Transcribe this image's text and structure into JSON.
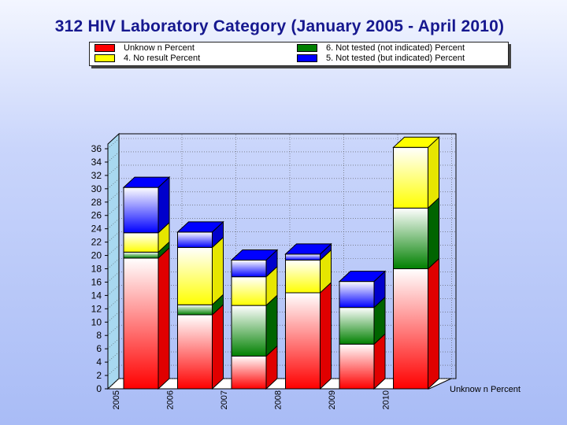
{
  "colors": {
    "unknown": "#ff0000",
    "not_tested_not_indicated": "#008000",
    "no_result": "#ffff00",
    "not_tested_indicated": "#0000ff",
    "title": "#16188f",
    "side_wall": "#a8d8f0"
  },
  "legend": {
    "unknown_label": "Unknow n Percent",
    "not_tested_not_indicated_label": "6. Not tested (not indicated) Percent",
    "no_result_label": "4. No result Percent",
    "not_tested_indicated_label": "5. Not tested (but indicated) Percent"
  },
  "chart_data": {
    "type": "bar",
    "title": "312 HIV Laboratory Category (January 2005 - April 2010)",
    "stacked": true,
    "three_d": true,
    "categories": [
      "2005",
      "2006",
      "2007",
      "2008",
      "2009",
      "2010"
    ],
    "series": [
      {
        "name": "Unknow n Percent",
        "color": "#ff0000",
        "values": [
          19.6,
          11.1,
          4.9,
          14.4,
          6.7,
          18.0
        ]
      },
      {
        "name": "6. Not tested (not indicated) Percent",
        "color": "#008000",
        "values": [
          0.9,
          1.5,
          7.6,
          0,
          5.5,
          9.1
        ]
      },
      {
        "name": "4. No result Percent",
        "color": "#ffff00",
        "values": [
          2.9,
          8.6,
          4.3,
          4.9,
          0,
          9.1
        ]
      },
      {
        "name": "5. Not tested (but indicated) Percent",
        "color": "#0000ff",
        "values": [
          6.8,
          2.3,
          2.5,
          0.9,
          3.9,
          0
        ]
      }
    ],
    "ylim": [
      0,
      36
    ],
    "yticks": [
      0,
      2,
      4,
      6,
      8,
      10,
      12,
      14,
      16,
      18,
      20,
      22,
      24,
      26,
      28,
      30,
      32,
      34,
      36
    ],
    "depth_axis_label": "Unknow n Percent",
    "grid": true
  }
}
